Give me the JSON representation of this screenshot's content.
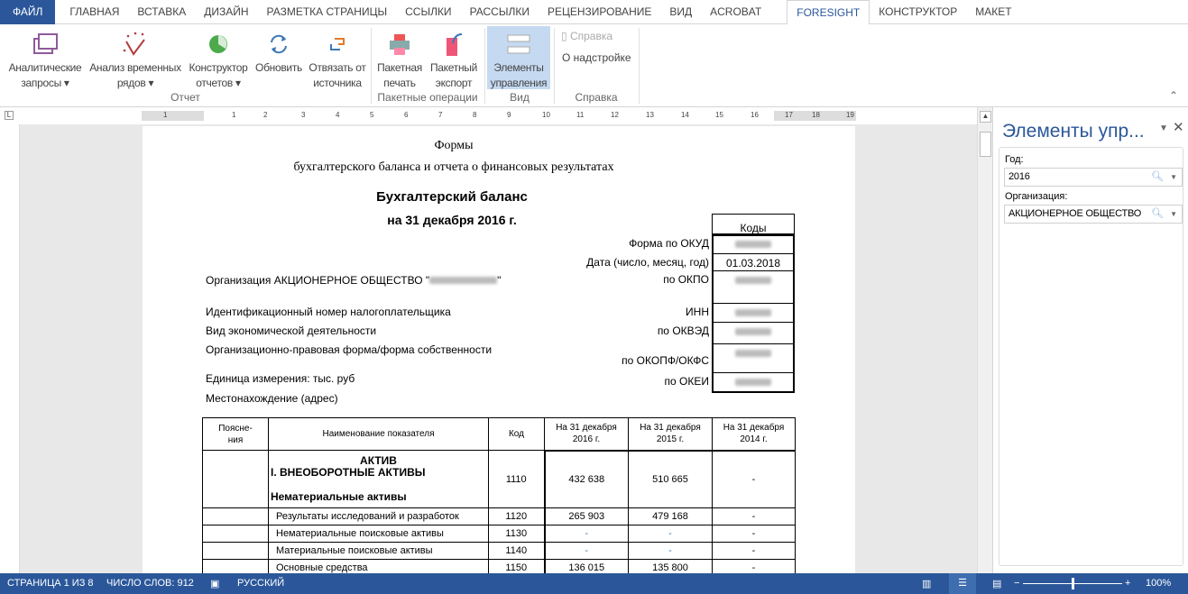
{
  "tabs": [
    "ФАЙЛ",
    "ГЛАВНАЯ",
    "ВСТАВКА",
    "ДИЗАЙН",
    "РАЗМЕТКА СТРАНИЦЫ",
    "ССЫЛКИ",
    "РАССЫЛКИ",
    "РЕЦЕНЗИРОВАНИЕ",
    "ВИД",
    "ACROBAT",
    "FORESIGHT",
    "КОНСТРУКТОР",
    "МАКЕТ"
  ],
  "active_tab": "FORESIGHT",
  "ribbon": {
    "analytic": [
      "Аналитические",
      "запросы"
    ],
    "timeseries": [
      "Анализ временных",
      "рядов"
    ],
    "constructor": [
      "Конструктор",
      "отчетов"
    ],
    "refresh": "Обновить",
    "unbind": [
      "Отвязать от",
      "источника"
    ],
    "group_report": "Отчет",
    "batch_print": [
      "Пакетная",
      "печать"
    ],
    "batch_export": [
      "Пакетный",
      "экспорт"
    ],
    "group_batch": "Пакетные операции",
    "controls": [
      "Элементы",
      "управления"
    ],
    "group_view": "Вид",
    "help": "Справка",
    "about": "О надстройке",
    "group_help": "Справка"
  },
  "ruler_labels": [
    "1",
    "1",
    "2",
    "3",
    "4",
    "5",
    "6",
    "7",
    "8",
    "9",
    "10",
    "11",
    "12",
    "13",
    "14",
    "15",
    "16",
    "17",
    "18",
    "19"
  ],
  "doc": {
    "title1": "Формы",
    "title2": "бухгалтерского баланса и отчета о финансовых результатах",
    "heading1": "Бухгалтерский баланс",
    "heading2": "на 31 декабря 2016 г.",
    "org": "Организация АКЦИОНЕРНОЕ ОБЩЕСТВО \"",
    "org_end": "\"",
    "inn_label": "Идентификационный номер налогоплательщика",
    "activity": "Вид экономической деятельности",
    "legal_form": "Организационно-правовая форма/форма собственности",
    "unit": "Единица измерения: тыс. руб",
    "location": "Местонахождение (адрес)",
    "codes_header": "Коды",
    "codes": [
      {
        "label": "Форма по ОКУД",
        "value": null
      },
      {
        "label": "Дата (число, месяц, год)",
        "value": "01.03.2018"
      },
      {
        "label": "по ОКПО",
        "value": null
      },
      {
        "label": "ИНН",
        "value": null
      },
      {
        "label": "по ОКВЭД",
        "value": null
      },
      {
        "label": "по ОКОПФ/ОКФС",
        "value": null
      },
      {
        "label": "по ОКЕИ",
        "value": null
      }
    ],
    "table": {
      "headers": [
        "Поясне-\nния",
        "Наименование показателя",
        "Код",
        "На 31 декабря\n2016 г.",
        "На 31 декабря\n2015 г.",
        "На 31 декабря\n2014 г."
      ],
      "section": {
        "l1": "АКТИВ",
        "l2": "I. ВНЕОБОРОТНЫЕ АКТИВЫ",
        "l3": "Нематериальные активы",
        "code": "1110",
        "v": [
          "432 638",
          "510 665",
          "-"
        ]
      },
      "rows": [
        {
          "name": "Результаты исследований и разработок",
          "code": "1120",
          "v": [
            "265 903",
            "479 168",
            "-"
          ]
        },
        {
          "name": "Нематериальные поисковые активы",
          "code": "1130",
          "v": [
            "-",
            "-",
            "-"
          ]
        },
        {
          "name": "Материальные поисковые активы",
          "code": "1140",
          "v": [
            "-",
            "-",
            "-"
          ]
        },
        {
          "name": "Основные средства",
          "code": "1150",
          "v": [
            "136 015",
            "135 800",
            "-"
          ]
        }
      ]
    }
  },
  "pane": {
    "title": "Элементы упр...",
    "year_label": "Год:",
    "year_value": "2016",
    "org_label": "Организация:",
    "org_value": "АКЦИОНЕРНОЕ ОБЩЕСТВО"
  },
  "status": {
    "page": "СТРАНИЦА 1 ИЗ 8",
    "words": "ЧИСЛО СЛОВ: 912",
    "lang": "РУССКИЙ",
    "zoom": "100%"
  },
  "colors": {
    "accent": "#2b579a",
    "selected_button": "#c5d9f1"
  }
}
